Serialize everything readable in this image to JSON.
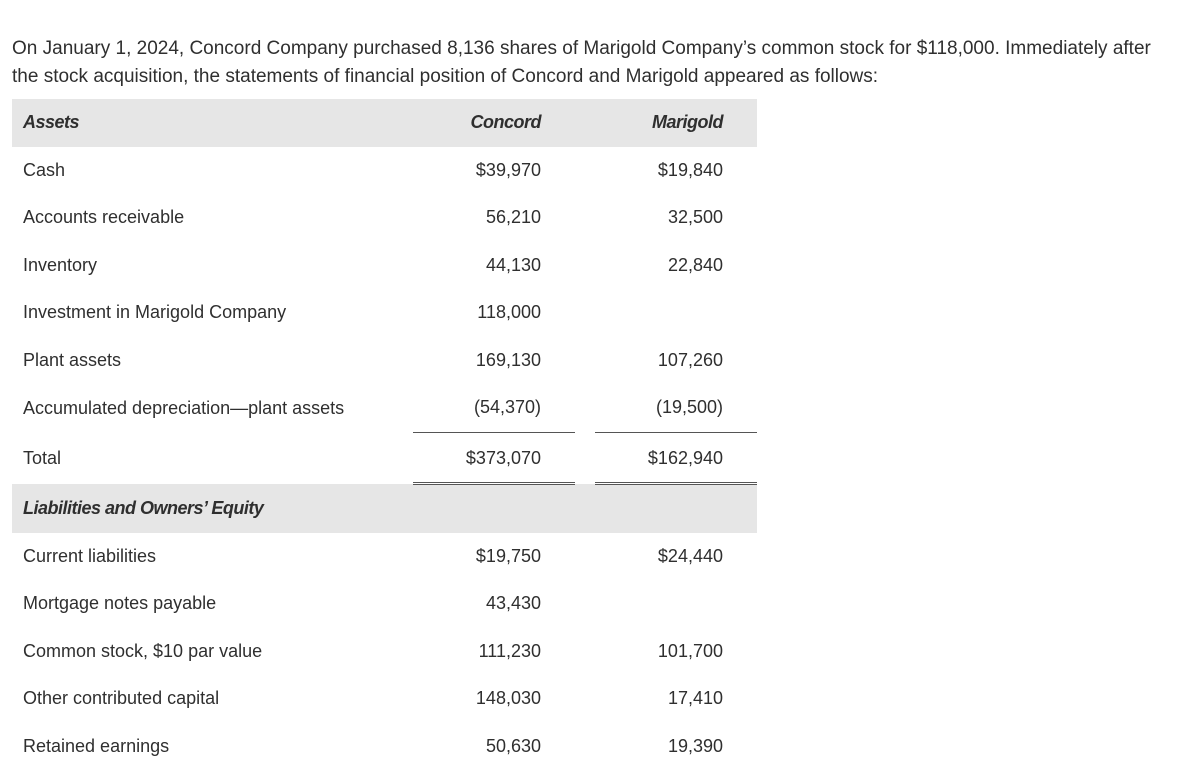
{
  "intro": "On January 1, 2024, Concord Company purchased 8,136 shares of Marigold Company’s common stock for $118,000. Immediately after the stock acquisition, the statements of financial position of Concord and Marigold appeared as follows:",
  "assets_header": {
    "label": "Assets",
    "concord": "Concord",
    "marigold": "Marigold"
  },
  "assets": [
    {
      "label": "Cash",
      "concord": "$39,970",
      "marigold": "$19,840"
    },
    {
      "label": "Accounts receivable",
      "concord": "56,210",
      "marigold": "32,500"
    },
    {
      "label": "Inventory",
      "concord": "44,130",
      "marigold": "22,840"
    },
    {
      "label": "Investment in Marigold Company",
      "concord": "118,000",
      "marigold": ""
    },
    {
      "label": "Plant assets",
      "concord": "169,130",
      "marigold": "107,260"
    },
    {
      "label": "Accumulated depreciation—plant assets",
      "concord": "(54,370)",
      "marigold": "(19,500)"
    }
  ],
  "total": {
    "label": "Total",
    "concord": "$373,070",
    "marigold": "$162,940"
  },
  "liabilities_header": {
    "label": "Liabilities and Owners’ Equity"
  },
  "liabilities": [
    {
      "label": "Current liabilities",
      "concord": "$19,750",
      "marigold": "$24,440"
    },
    {
      "label": "Mortgage notes payable",
      "concord": "43,430",
      "marigold": ""
    },
    {
      "label": "Common stock, $10 par value",
      "concord": "111,230",
      "marigold": "101,700"
    },
    {
      "label": "Other contributed capital",
      "concord": "148,030",
      "marigold": "17,410"
    },
    {
      "label": "Retained earnings",
      "concord": "50,630",
      "marigold": "19,390"
    }
  ]
}
